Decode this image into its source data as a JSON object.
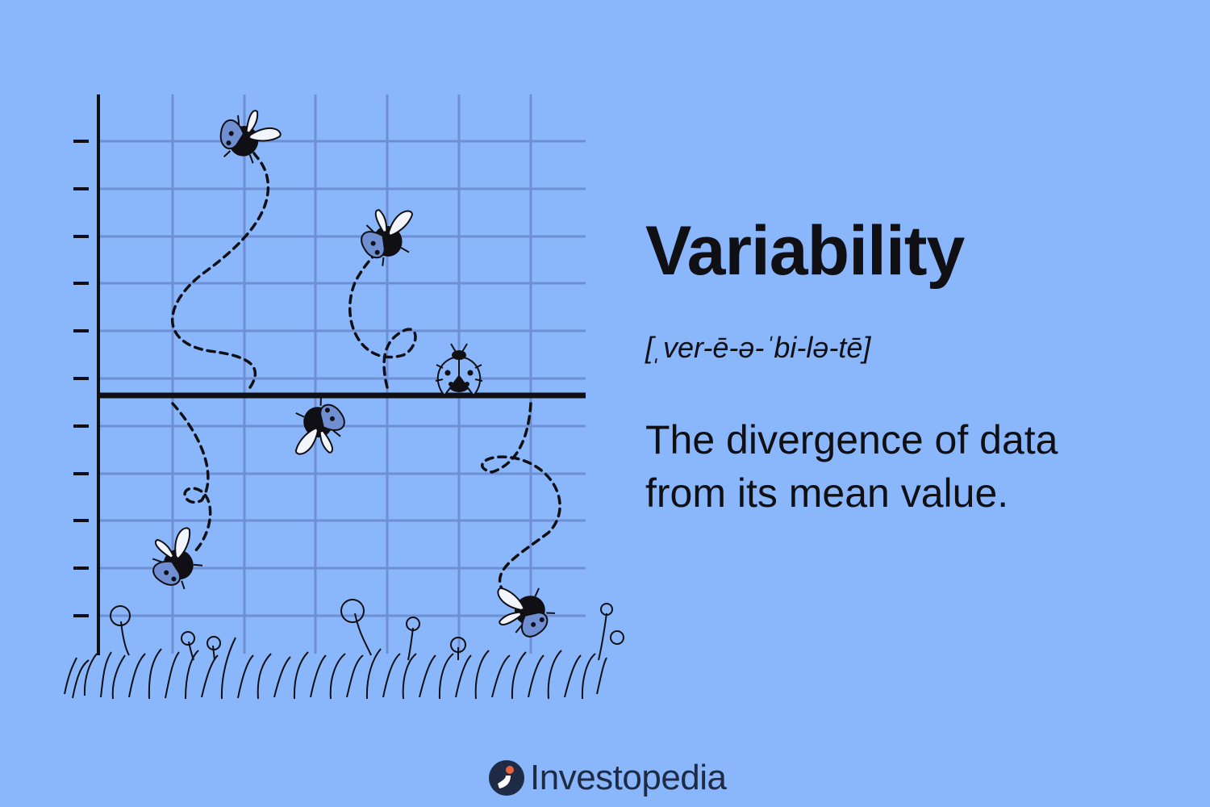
{
  "definition": {
    "term": "Variability",
    "pronunciation": "[ˌver-ē-ə-ˈbi-lə-tē]",
    "meaning": "The divergence of data from its mean value."
  },
  "brand": {
    "name": "Investopedia",
    "logo_icon": "investopedia-i-icon"
  },
  "colors": {
    "background": "#8ab7fc",
    "grid": "#6f8fd2",
    "ink": "#0f0f14",
    "ladybug_spots": "#5f7fc4",
    "brand_text": "#1f2a44"
  },
  "illustration": {
    "icon": "ladybug-icon",
    "mean_line_icon": "mean-line",
    "ground_icon": "grass-and-flowers"
  }
}
